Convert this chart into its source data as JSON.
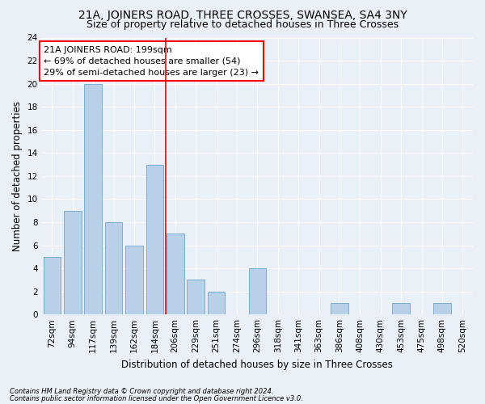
{
  "title": "21A, JOINERS ROAD, THREE CROSSES, SWANSEA, SA4 3NY",
  "subtitle": "Size of property relative to detached houses in Three Crosses",
  "xlabel": "Distribution of detached houses by size in Three Crosses",
  "ylabel": "Number of detached properties",
  "categories": [
    "72sqm",
    "94sqm",
    "117sqm",
    "139sqm",
    "162sqm",
    "184sqm",
    "206sqm",
    "229sqm",
    "251sqm",
    "274sqm",
    "296sqm",
    "318sqm",
    "341sqm",
    "363sqm",
    "386sqm",
    "408sqm",
    "430sqm",
    "453sqm",
    "475sqm",
    "498sqm",
    "520sqm"
  ],
  "values": [
    5,
    9,
    20,
    8,
    6,
    13,
    7,
    3,
    2,
    0,
    4,
    0,
    0,
    0,
    1,
    0,
    0,
    1,
    0,
    1,
    0
  ],
  "bar_color": "#b8d0e8",
  "bar_edge_color": "#7aadd4",
  "annotation_text_line1": "21A JOINERS ROAD: 199sqm",
  "annotation_text_line2": "← 69% of detached houses are smaller (54)",
  "annotation_text_line3": "29% of semi-detached houses are larger (23) →",
  "annotation_box_color": "white",
  "annotation_box_edge_color": "red",
  "vline_color": "red",
  "vline_x": 5.55,
  "ylim": [
    0,
    24
  ],
  "yticks": [
    0,
    2,
    4,
    6,
    8,
    10,
    12,
    14,
    16,
    18,
    20,
    22,
    24
  ],
  "background_color": "#eaf0f8",
  "grid_color": "white",
  "footer_line1": "Contains HM Land Registry data © Crown copyright and database right 2024.",
  "footer_line2": "Contains public sector information licensed under the Open Government Licence v3.0.",
  "title_fontsize": 10,
  "subtitle_fontsize": 9,
  "axis_label_fontsize": 8.5,
  "tick_fontsize": 7.5,
  "annotation_fontsize": 8
}
